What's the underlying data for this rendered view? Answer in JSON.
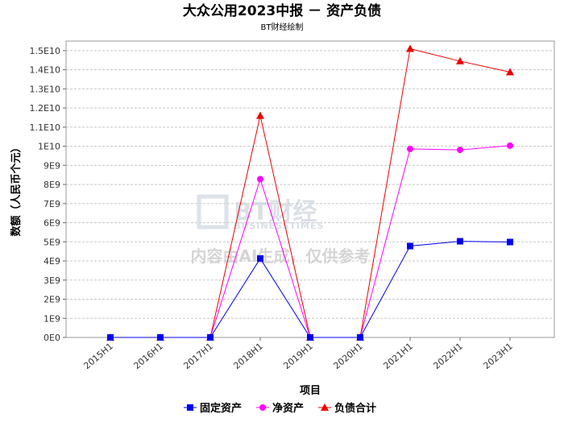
{
  "chart_data": {
    "type": "line",
    "title": "大众公用2023中报 － 资产负债",
    "subtitle": "BT财经绘制",
    "xlabel": "项目",
    "ylabel": "数额（人民币个元）",
    "categories": [
      "2015H1",
      "2016H1",
      "2017H1",
      "2018H1",
      "2019H1",
      "2020H1",
      "2021H1",
      "2022H1",
      "2023H1"
    ],
    "ylim": [
      0,
      15500000000
    ],
    "yticks": [
      {
        "value": 0,
        "label": "0E0"
      },
      {
        "value": 1000000000,
        "label": "1E9"
      },
      {
        "value": 2000000000,
        "label": "2E9"
      },
      {
        "value": 3000000000,
        "label": "3E9"
      },
      {
        "value": 4000000000,
        "label": "4E9"
      },
      {
        "value": 5000000000,
        "label": "5E9"
      },
      {
        "value": 6000000000,
        "label": "6E9"
      },
      {
        "value": 7000000000,
        "label": "7E9"
      },
      {
        "value": 8000000000,
        "label": "8E9"
      },
      {
        "value": 9000000000,
        "label": "9E9"
      },
      {
        "value": 10000000000,
        "label": "1E10"
      },
      {
        "value": 11000000000,
        "label": "1.1E10"
      },
      {
        "value": 12000000000,
        "label": "1.2E10"
      },
      {
        "value": 13000000000,
        "label": "1.3E10"
      },
      {
        "value": 14000000000,
        "label": "1.4E10"
      },
      {
        "value": 15000000000,
        "label": "1.5E10"
      }
    ],
    "grid": true,
    "legend_position": "bottom",
    "series": [
      {
        "name": "固定资产",
        "color": "#0000ee",
        "marker": "square",
        "values": [
          0,
          0,
          0,
          4130000000,
          0,
          0,
          4780000000,
          5030000000,
          4990000000
        ]
      },
      {
        "name": "净资产",
        "color": "#ff00ff",
        "marker": "circle",
        "values": [
          0,
          0,
          0,
          8280000000,
          0,
          0,
          9860000000,
          9810000000,
          10030000000
        ]
      },
      {
        "name": "负债合计",
        "color": "#ee0000",
        "marker": "triangle",
        "values": [
          0,
          0,
          0,
          11600000000,
          0,
          0,
          15100000000,
          14450000000,
          13880000000
        ]
      }
    ]
  },
  "watermark": {
    "brand": "BT财经",
    "brand_en": "BUSINESSTIMES",
    "notice": "内容由AI生成，仅供参考"
  }
}
